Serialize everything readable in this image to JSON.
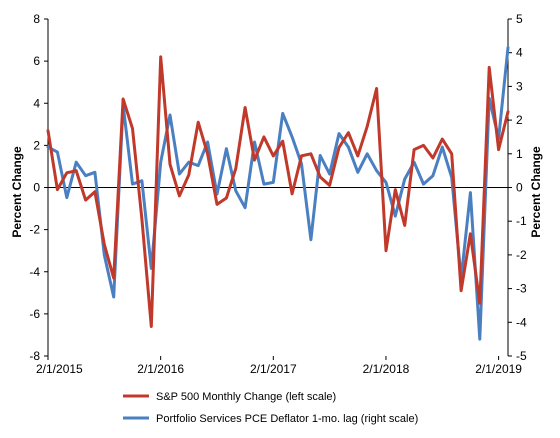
{
  "chart_data": {
    "type": "line",
    "xlabel": "",
    "ylabel_left": "Percent Change",
    "ylabel_right": "Percent Change",
    "left_axis": {
      "min": -8,
      "max": 8,
      "step": 2,
      "ticks": [
        "8",
        "6",
        "4",
        "2",
        "0",
        "-2",
        "-4",
        "-6",
        "-8"
      ]
    },
    "right_axis": {
      "min": -5,
      "max": 5,
      "step": 1,
      "ticks": [
        "5",
        "4",
        "3",
        "2",
        "1",
        "0",
        "-1",
        "-2",
        "-3",
        "-4",
        "-5"
      ]
    },
    "x_tick_labels": [
      "2/1/2015",
      "2/1/2016",
      "2/1/2017",
      "2/1/2018",
      "2/1/2019"
    ],
    "x_range": [
      "2/1/2015",
      "3/1/2019"
    ],
    "grid": false,
    "legend_position": "bottom",
    "series": [
      {
        "name": "S&P 500 Monthly Change (left scale)",
        "axis": "left",
        "color": "#c0392b",
        "x": [
          "2/1/2015",
          "3/1/2015",
          "4/1/2015",
          "5/1/2015",
          "6/1/2015",
          "7/1/2015",
          "8/1/2015",
          "9/1/2015",
          "10/1/2015",
          "11/1/2015",
          "12/1/2015",
          "1/1/2016",
          "2/1/2016",
          "3/1/2016",
          "4/1/2016",
          "5/1/2016",
          "6/1/2016",
          "7/1/2016",
          "8/1/2016",
          "9/1/2016",
          "10/1/2016",
          "11/1/2016",
          "12/1/2016",
          "1/1/2017",
          "2/1/2017",
          "3/1/2017",
          "4/1/2017",
          "5/1/2017",
          "6/1/2017",
          "7/1/2017",
          "8/1/2017",
          "9/1/2017",
          "10/1/2017",
          "11/1/2017",
          "12/1/2017",
          "1/1/2018",
          "2/1/2018",
          "3/1/2018",
          "4/1/2018",
          "5/1/2018",
          "6/1/2018",
          "7/1/2018",
          "8/1/2018",
          "9/1/2018",
          "10/1/2018",
          "11/1/2018",
          "12/1/2018",
          "1/1/2019",
          "2/1/2019",
          "3/1/2019"
        ],
        "values": [
          2.7,
          -0.1,
          0.7,
          0.8,
          -0.6,
          -0.2,
          -2.7,
          -4.3,
          4.2,
          2.8,
          -1.5,
          -6.6,
          6.2,
          1.1,
          -0.4,
          0.6,
          3.1,
          1.6,
          -0.8,
          -0.5,
          0.9,
          3.8,
          1.3,
          2.4,
          1.5,
          2.2,
          -0.3,
          1.5,
          1.6,
          0.5,
          0.1,
          1.9,
          2.6,
          1.5,
          2.9,
          4.7,
          -3.0,
          -0.1,
          -1.8,
          1.8,
          2.0,
          1.4,
          2.3,
          1.6,
          -4.9,
          -2.2,
          -5.5,
          5.7,
          1.8,
          3.6
        ]
      },
      {
        "name": "Portfolio Services PCE Deflator 1-mo. lag (right scale)",
        "axis": "right",
        "color": "#4a7fc1",
        "x": [
          "2/1/2015",
          "3/1/2015",
          "4/1/2015",
          "5/1/2015",
          "6/1/2015",
          "7/1/2015",
          "8/1/2015",
          "9/1/2015",
          "10/1/2015",
          "11/1/2015",
          "12/1/2015",
          "1/1/2016",
          "2/1/2016",
          "3/1/2016",
          "4/1/2016",
          "5/1/2016",
          "6/1/2016",
          "7/1/2016",
          "8/1/2016",
          "9/1/2016",
          "10/1/2016",
          "11/1/2016",
          "12/1/2016",
          "1/1/2017",
          "2/1/2017",
          "3/1/2017",
          "4/1/2017",
          "5/1/2017",
          "6/1/2017",
          "7/1/2017",
          "8/1/2017",
          "9/1/2017",
          "10/1/2017",
          "11/1/2017",
          "12/1/2017",
          "1/1/2018",
          "2/1/2018",
          "3/1/2018",
          "4/1/2018",
          "5/1/2018",
          "6/1/2018",
          "7/1/2018",
          "8/1/2018",
          "9/1/2018",
          "10/1/2018",
          "11/1/2018",
          "12/1/2018",
          "1/1/2019",
          "2/1/2019",
          "3/1/2019"
        ],
        "values": [
          1.2,
          1.05,
          -0.3,
          0.75,
          0.35,
          0.45,
          -2.0,
          -3.25,
          2.45,
          0.1,
          0.2,
          -2.4,
          0.75,
          2.15,
          0.4,
          0.75,
          0.65,
          1.35,
          -0.2,
          1.15,
          -0.1,
          -0.6,
          1.35,
          0.1,
          0.15,
          2.2,
          1.5,
          0.7,
          -1.55,
          0.95,
          0.4,
          1.6,
          1.2,
          0.45,
          1.0,
          0.5,
          0.15,
          -0.85,
          0.25,
          0.75,
          0.1,
          0.35,
          1.2,
          0.3,
          -2.7,
          -0.15,
          -4.5,
          2.65,
          1.45,
          4.15
        ]
      }
    ]
  }
}
